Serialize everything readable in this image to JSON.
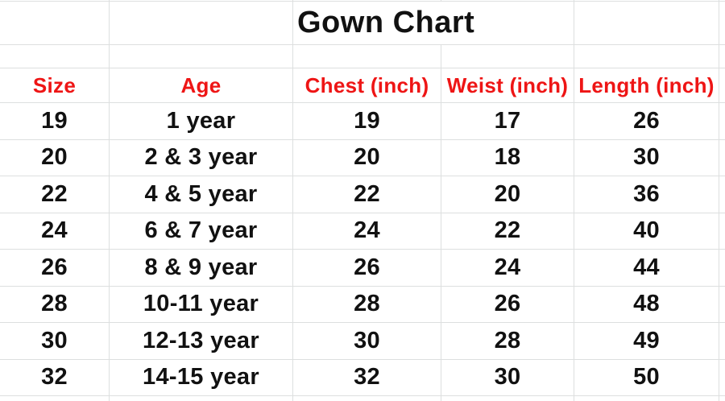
{
  "title": "Gown Chart",
  "colors": {
    "header_text": "#ee1515",
    "body_text": "#111111",
    "gridline": "#dddfdf",
    "background": "#ffffff"
  },
  "table": {
    "columns": [
      "Size",
      "Age",
      "Chest (inch)",
      "Weist (inch)",
      "Length (inch)"
    ],
    "rows": [
      {
        "size": "19",
        "age": "1 year",
        "chest": "19",
        "weist": "17",
        "length": "26"
      },
      {
        "size": "20",
        "age": "2 & 3 year",
        "chest": "20",
        "weist": "18",
        "length": "30"
      },
      {
        "size": "22",
        "age": "4 & 5 year",
        "chest": "22",
        "weist": "20",
        "length": "36"
      },
      {
        "size": "24",
        "age": "6 & 7 year",
        "chest": "24",
        "weist": "22",
        "length": "40"
      },
      {
        "size": "26",
        "age": "8 & 9 year",
        "chest": "26",
        "weist": "24",
        "length": "44"
      },
      {
        "size": "28",
        "age": "10-11 year",
        "chest": "28",
        "weist": "26",
        "length": "48"
      },
      {
        "size": "30",
        "age": "12-13 year",
        "chest": "30",
        "weist": "28",
        "length": "49"
      },
      {
        "size": "32",
        "age": "14-15 year",
        "chest": "32",
        "weist": "30",
        "length": "50"
      }
    ]
  }
}
